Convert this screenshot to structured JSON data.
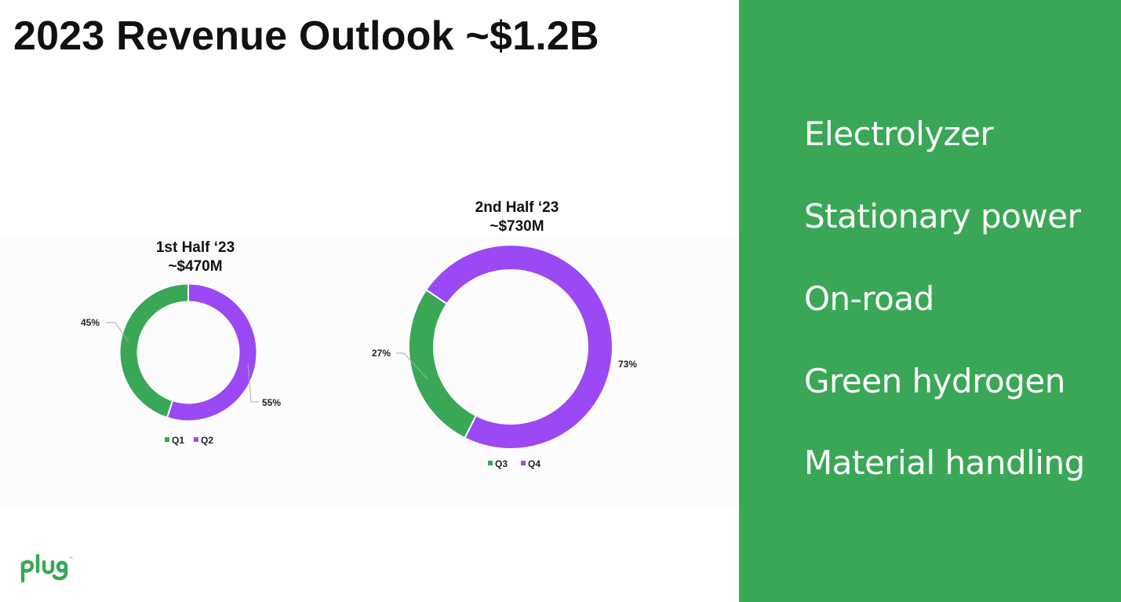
{
  "title": "2023 Revenue Outlook ~$1.2B",
  "chart_data": [
    {
      "type": "pie",
      "title": "1st Half ‘23",
      "subtitle": "~$470M",
      "categories": [
        "Q1",
        "Q2"
      ],
      "values": [
        45,
        55
      ],
      "value_labels": [
        "45%",
        "55%"
      ],
      "colors": [
        "#3aa757",
        "#9a49f5"
      ],
      "legend_position": "bottom"
    },
    {
      "type": "pie",
      "title": "2nd Half ‘23",
      "subtitle": "~$730M",
      "categories": [
        "Q3",
        "Q4"
      ],
      "values": [
        27,
        73
      ],
      "value_labels": [
        "27%",
        "73%"
      ],
      "colors": [
        "#3aa757",
        "#9a49f5"
      ],
      "legend_position": "bottom"
    }
  ],
  "panel": {
    "background": "#3aa757",
    "items": [
      "Electrolyzer",
      "Stationary power",
      "On-road",
      "Green hydrogen",
      "Material handling"
    ]
  },
  "logo": {
    "text": "plug"
  }
}
